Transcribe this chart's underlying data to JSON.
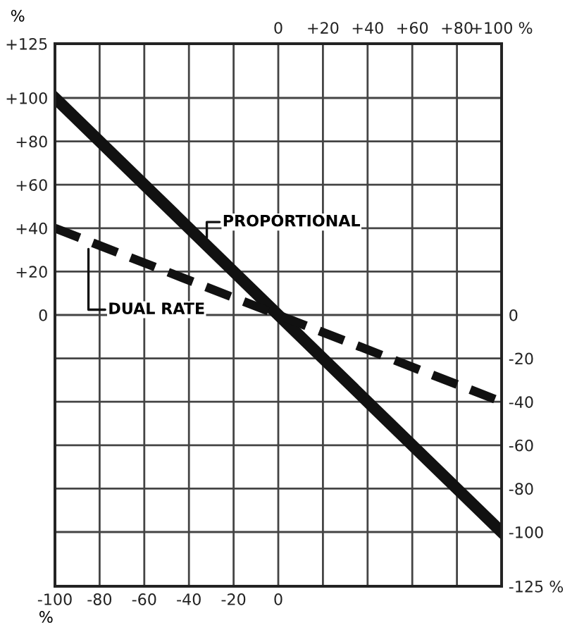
{
  "chart_data": {
    "type": "line",
    "xlabel": "%",
    "ylabel": "%",
    "x": [
      -100,
      100
    ],
    "series": [
      {
        "name": "PROPORTIONAL",
        "color": "#111111",
        "values": [
          100,
          -100
        ],
        "line_style": "solid"
      },
      {
        "name": "DUAL RATE",
        "color": "#111111",
        "values": [
          40,
          -40
        ],
        "line_style": "dashed"
      }
    ],
    "xlim": [
      -100,
      100
    ],
    "ylim": [
      -125,
      125
    ],
    "y2lim": [
      -125,
      125
    ],
    "x2lim": [
      -100,
      100
    ],
    "xticks": [
      -100,
      -80,
      -60,
      -40,
      -20,
      0,
      {
        "value": 20,
        "label": null
      },
      {
        "value": 40,
        "label": null
      },
      {
        "value": 60,
        "label": null
      },
      {
        "value": 80,
        "label": null
      },
      {
        "value": 100,
        "label": null
      }
    ],
    "x2ticks": [
      0,
      {
        "value": 20,
        "label": "+20"
      },
      {
        "value": 40,
        "label": "+40"
      },
      {
        "value": 60,
        "label": "+60"
      },
      {
        "value": 80,
        "label": "+80"
      },
      {
        "value": 100,
        "label": "+100 %"
      }
    ],
    "yticks": [
      {
        "value": 125,
        "label": "+125"
      },
      {
        "value": 100,
        "label": "+100"
      },
      {
        "value": 80,
        "label": "+80"
      },
      {
        "value": 60,
        "label": "+60"
      },
      {
        "value": 40,
        "label": "+40"
      },
      {
        "value": 20,
        "label": "+20"
      },
      0,
      {
        "value": -20,
        "label": null
      },
      {
        "value": -40,
        "label": null
      },
      {
        "value": -60,
        "label": null
      },
      {
        "value": -80,
        "label": null
      },
      {
        "value": -100,
        "label": null
      },
      {
        "value": -125,
        "label": null
      }
    ],
    "y2ticks": [
      0,
      -20,
      -40,
      -60,
      -80,
      -100,
      {
        "value": -125,
        "label": "-125 %"
      }
    ],
    "grid": true,
    "marker": "none"
  }
}
